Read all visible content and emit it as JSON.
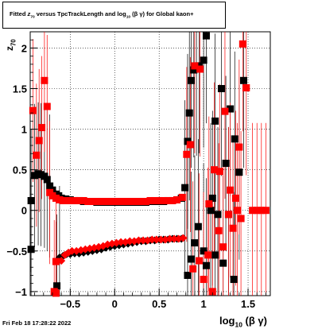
{
  "title": {
    "prefix": "Fitted ",
    "z": "z",
    "z_sub": "70",
    "mid": " versus TpcTrackLength and log",
    "log_sub": "10",
    "tail": " (β γ) for Global kaon+"
  },
  "footer": "Fri Feb 18 17:28:22 2022",
  "axis_labels": {
    "y": "z",
    "y_sub": "70",
    "x": "log",
    "x_sub": "10",
    "x_tail": " (β γ)"
  },
  "colors": {
    "black_series": "#000000",
    "red_series": "#ff0000",
    "grid": "#000000"
  },
  "chart_data": {
    "type": "scatter",
    "title": "Fitted z70 versus TpcTrackLength and log10 (β γ) for Global kaon+",
    "xlabel": "log10 (β γ)",
    "ylabel": "z70",
    "xlim": [
      -0.95,
      1.75
    ],
    "ylim": [
      -1.05,
      2.2
    ],
    "x_ticks": [
      -0.5,
      0,
      0.5,
      1,
      1.5
    ],
    "x_tick_labels": [
      "−0.5",
      "0",
      "0.5",
      "1",
      "1.5"
    ],
    "y_ticks": [
      -1,
      -0.5,
      0,
      0.5,
      1,
      1.5,
      2
    ],
    "y_tick_labels": [
      "−1",
      "−0.5",
      "0",
      "0.5",
      "1",
      "1.5",
      "2"
    ],
    "grid": true,
    "series": [
      {
        "color": "black",
        "points": [
          [
            -0.94,
            0.12
          ],
          [
            -0.9,
            0.43
          ],
          [
            -0.86,
            0.45
          ],
          [
            -0.83,
            0.44
          ],
          [
            -0.79,
            0.42
          ],
          [
            -0.76,
            0.38
          ],
          [
            -0.73,
            0.3
          ],
          [
            -0.7,
            0.25
          ],
          [
            -0.66,
            0.2
          ],
          [
            -0.63,
            0.18
          ],
          [
            -0.6,
            0.15
          ],
          [
            -0.55,
            0.14
          ],
          [
            -0.5,
            0.13
          ],
          [
            -0.45,
            0.12
          ],
          [
            -0.4,
            0.12
          ],
          [
            -0.35,
            0.11
          ],
          [
            -0.3,
            0.11
          ],
          [
            -0.25,
            0.11
          ],
          [
            -0.2,
            0.1
          ],
          [
            -0.15,
            0.1
          ],
          [
            -0.1,
            0.1
          ],
          [
            -0.05,
            0.1
          ],
          [
            0,
            0.1
          ],
          [
            0.05,
            0.1
          ],
          [
            0.1,
            0.1
          ],
          [
            0.15,
            0.1
          ],
          [
            0.2,
            0.1
          ],
          [
            0.25,
            0.1
          ],
          [
            0.3,
            0.1
          ],
          [
            0.35,
            0.1
          ],
          [
            0.4,
            0.11
          ],
          [
            0.45,
            0.11
          ],
          [
            0.5,
            0.11
          ],
          [
            0.55,
            0.11
          ],
          [
            0.6,
            0.12
          ],
          [
            0.65,
            0.12
          ],
          [
            0.7,
            0.13
          ],
          [
            0.75,
            0.15
          ],
          [
            0.79,
            0.28
          ],
          [
            0.82,
            0.85
          ],
          [
            0.84,
            1.2
          ],
          [
            0.86,
            1.6
          ],
          [
            0.89,
            1.73
          ],
          [
            0.92,
            1.75
          ],
          [
            0.95,
            1.78
          ],
          [
            1.0,
            1.85
          ],
          [
            1.03,
            2.15
          ],
          [
            1.08,
            0.0
          ],
          [
            1.13,
            1.1
          ],
          [
            1.16,
            -0.05
          ],
          [
            1.2,
            1.5
          ],
          [
            1.25,
            0.58
          ],
          [
            1.3,
            1.25
          ],
          [
            1.35,
            0.88
          ],
          [
            1.4,
            0.47
          ],
          [
            1.45,
            1.6
          ],
          [
            -0.94,
            -0.48
          ],
          [
            -0.62,
            -0.58
          ],
          [
            -0.58,
            -0.56
          ],
          [
            -0.54,
            -0.54
          ],
          [
            -0.5,
            -0.54
          ],
          [
            -0.45,
            -0.53
          ],
          [
            -0.4,
            -0.53
          ],
          [
            -0.35,
            -0.52
          ],
          [
            -0.3,
            -0.51
          ],
          [
            -0.25,
            -0.5
          ],
          [
            -0.2,
            -0.49
          ],
          [
            -0.15,
            -0.48
          ],
          [
            -0.1,
            -0.46
          ],
          [
            -0.05,
            -0.45
          ],
          [
            0,
            -0.44
          ],
          [
            0.05,
            -0.43
          ],
          [
            0.1,
            -0.42
          ],
          [
            0.15,
            -0.41
          ],
          [
            0.2,
            -0.4
          ],
          [
            0.25,
            -0.39
          ],
          [
            0.3,
            -0.38
          ],
          [
            0.35,
            -0.38
          ],
          [
            0.4,
            -0.37
          ],
          [
            0.45,
            -0.37
          ],
          [
            0.5,
            -0.36
          ],
          [
            0.55,
            -0.36
          ],
          [
            0.6,
            -0.36
          ],
          [
            0.65,
            -0.35
          ],
          [
            0.7,
            -0.35
          ],
          [
            0.75,
            -0.35
          ],
          [
            -0.65,
            -0.93
          ],
          [
            0.82,
            -0.8
          ],
          [
            0.86,
            -0.6
          ],
          [
            0.9,
            -0.4
          ],
          [
            0.94,
            -0.2
          ],
          [
            1.0,
            -0.5
          ],
          [
            1.03,
            -0.68
          ],
          [
            1.1,
            0.15
          ],
          [
            1.13,
            -0.55
          ],
          [
            1.22,
            -0.65
          ],
          [
            1.28,
            -0.05
          ],
          [
            1.34,
            -0.85
          ]
        ]
      },
      {
        "color": "red",
        "points": [
          [
            -0.92,
            1.23
          ],
          [
            -0.88,
            0.68
          ],
          [
            -0.85,
            0.86
          ],
          [
            -0.82,
            1.02
          ],
          [
            -0.79,
            1.6
          ],
          [
            -0.76,
            1.28
          ],
          [
            -0.73,
            0.22
          ],
          [
            -0.7,
            0.18
          ],
          [
            -0.66,
            0.15
          ],
          [
            -0.62,
            0.13
          ],
          [
            -0.58,
            0.12
          ],
          [
            -0.54,
            0.12
          ],
          [
            -0.5,
            0.12
          ],
          [
            -0.45,
            0.12
          ],
          [
            -0.4,
            0.12
          ],
          [
            -0.35,
            0.12
          ],
          [
            -0.3,
            0.11
          ],
          [
            -0.25,
            0.11
          ],
          [
            -0.2,
            0.11
          ],
          [
            -0.15,
            0.11
          ],
          [
            -0.1,
            0.11
          ],
          [
            -0.05,
            0.11
          ],
          [
            0,
            0.11
          ],
          [
            0.05,
            0.11
          ],
          [
            0.1,
            0.11
          ],
          [
            0.15,
            0.11
          ],
          [
            0.2,
            0.11
          ],
          [
            0.25,
            0.11
          ],
          [
            0.3,
            0.11
          ],
          [
            0.35,
            0.11
          ],
          [
            0.4,
            0.12
          ],
          [
            0.45,
            0.12
          ],
          [
            0.5,
            0.12
          ],
          [
            0.55,
            0.12
          ],
          [
            0.6,
            0.12
          ],
          [
            0.65,
            0.12
          ],
          [
            0.7,
            0.13
          ],
          [
            0.76,
            0.16
          ],
          [
            0.81,
            0.69
          ],
          [
            0.85,
            0.81
          ],
          [
            0.9,
            1.78
          ],
          [
            0.96,
            1.74
          ],
          [
            1.06,
            0.08
          ],
          [
            1.12,
            0.5
          ],
          [
            1.18,
            0.48
          ],
          [
            1.24,
            1.22
          ],
          [
            1.3,
            0.25
          ],
          [
            1.36,
            0.15
          ],
          [
            1.4,
            0.78
          ],
          [
            1.44,
            2.05
          ],
          [
            1.48,
            1.51
          ],
          [
            1.55,
            0.0
          ],
          [
            1.6,
            0.0
          ],
          [
            1.65,
            0.0
          ],
          [
            1.7,
            0.0
          ],
          [
            -0.66,
            -0.63
          ],
          [
            -0.6,
            -0.62
          ],
          [
            -0.56,
            -0.55
          ],
          [
            -0.52,
            -0.52
          ],
          [
            -0.48,
            -0.5
          ],
          [
            -0.43,
            -0.5
          ],
          [
            -0.38,
            -0.49
          ],
          [
            -0.33,
            -0.48
          ],
          [
            -0.28,
            -0.47
          ],
          [
            -0.23,
            -0.46
          ],
          [
            -0.18,
            -0.45
          ],
          [
            -0.13,
            -0.44
          ],
          [
            -0.08,
            -0.42
          ],
          [
            -0.03,
            -0.41
          ],
          [
            0.02,
            -0.4
          ],
          [
            0.07,
            -0.39
          ],
          [
            0.12,
            -0.39
          ],
          [
            0.17,
            -0.38
          ],
          [
            0.22,
            -0.38
          ],
          [
            0.27,
            -0.37
          ],
          [
            0.32,
            -0.37
          ],
          [
            0.37,
            -0.37
          ],
          [
            0.42,
            -0.36
          ],
          [
            0.47,
            -0.36
          ],
          [
            0.52,
            -0.36
          ],
          [
            0.57,
            -0.36
          ],
          [
            0.62,
            -0.35
          ],
          [
            0.67,
            -0.35
          ],
          [
            0.72,
            -0.35
          ],
          [
            0.77,
            -0.34
          ],
          [
            -0.68,
            -1.0
          ],
          [
            -0.66,
            -1.02
          ],
          [
            0.88,
            -0.72
          ],
          [
            0.95,
            -0.62
          ],
          [
            1.0,
            -0.85
          ],
          [
            1.05,
            -0.55
          ],
          [
            1.1,
            -1.0
          ],
          [
            1.17,
            -0.25
          ],
          [
            1.22,
            -0.45
          ],
          [
            1.28,
            -0.05
          ],
          [
            1.33,
            -0.22
          ],
          [
            1.38,
            0.0
          ],
          [
            1.42,
            -0.1
          ]
        ]
      }
    ]
  }
}
